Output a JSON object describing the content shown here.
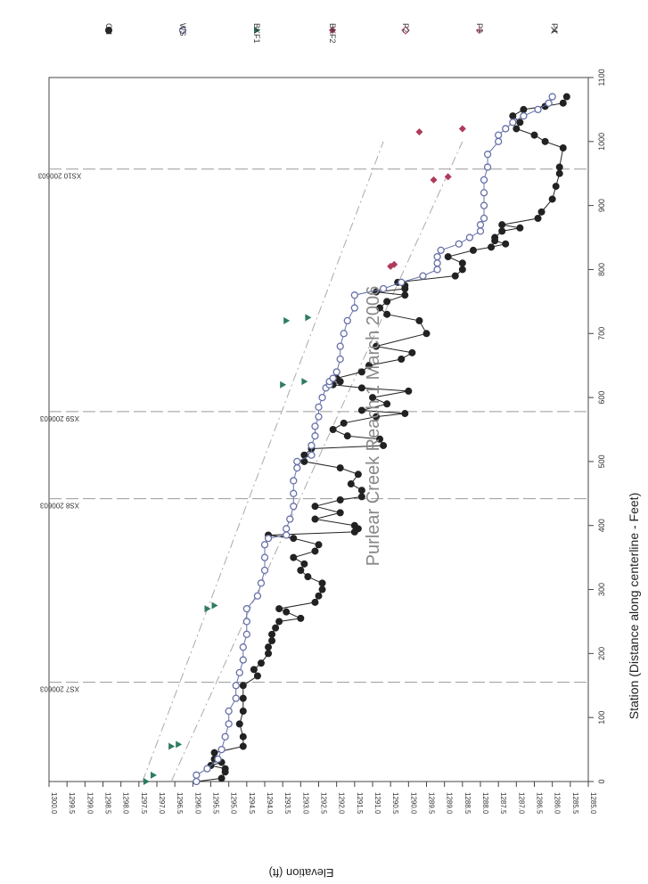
{
  "chart_data": {
    "type": "scatter",
    "title": "Purlear Creek Reach 1 March 2006",
    "xlabel": "Station (Distance along centerline - Feet)",
    "ylabel": "Elevation (ft)",
    "rotation_note": "figure rotated 90 degrees clockwise",
    "xlim": [
      0,
      1100
    ],
    "ylim": [
      1285.0,
      1300.0
    ],
    "x_ticks": [
      "0",
      "100",
      "200",
      "300",
      "400",
      "500",
      "600",
      "700",
      "800",
      "900",
      "1000",
      "1100"
    ],
    "y_ticks": [
      "1285.0",
      "1285.5",
      "1286.0",
      "1286.5",
      "1287.0",
      "1287.5",
      "1288.0",
      "1288.5",
      "1289.0",
      "1289.5",
      "1290.0",
      "1290.5",
      "1291.0",
      "1291.5",
      "1292.0",
      "1292.5",
      "1293.0",
      "1293.5",
      "1294.0",
      "1294.5",
      "1295.0",
      "1295.5",
      "1296.0",
      "1296.5",
      "1297.0",
      "1297.5",
      "1298.0",
      "1298.5",
      "1299.0",
      "1299.5",
      "1300.0"
    ],
    "legend_position": "right (above plot after rotation)",
    "colors": {
      "CH": "#222222",
      "WS": "#6670a8",
      "BKF1": "#2e7d5e",
      "BKF2": "#b03a5a",
      "P2": "#b03a5a",
      "P3": "#b03a5a",
      "P4": "#555555",
      "ref": "#999999",
      "trend": "#aaaaaa"
    },
    "cross_sections": [
      {
        "label": "XS7 200603",
        "x": 155
      },
      {
        "label": "XS8 200603",
        "x": 442
      },
      {
        "label": "XS9 200603",
        "x": 578
      },
      {
        "label": "XS10 200603",
        "x": 957
      }
    ],
    "trend_lines": [
      {
        "from": [
          0,
          1297.4
        ],
        "to": [
          1000,
          1290.7
        ]
      },
      {
        "from": [
          0,
          1296.6
        ],
        "to": [
          1000,
          1288.5
        ]
      }
    ],
    "series": [
      {
        "name": "CH",
        "marker": "filled-circle",
        "connected": true,
        "x": [
          0,
          5,
          15,
          20,
          25,
          30,
          35,
          45,
          55,
          70,
          90,
          110,
          130,
          150,
          165,
          175,
          185,
          200,
          210,
          220,
          230,
          240,
          250,
          255,
          265,
          270,
          280,
          290,
          300,
          310,
          320,
          330,
          340,
          350,
          360,
          370,
          380,
          385,
          390,
          395,
          400,
          410,
          420,
          430,
          440,
          445,
          455,
          465,
          480,
          490,
          500,
          510,
          520,
          525,
          535,
          540,
          550,
          560,
          570,
          575,
          580,
          590,
          600,
          610,
          615,
          620,
          625,
          630,
          640,
          650,
          660,
          670,
          680,
          700,
          720,
          730,
          740,
          750,
          760,
          765,
          770,
          775,
          780,
          790,
          800,
          810,
          820,
          830,
          835,
          840,
          845,
          850,
          860,
          865,
          870,
          880,
          890,
          910,
          930,
          950,
          960,
          990,
          1000,
          1010,
          1020,
          1030,
          1040,
          1050,
          1055,
          1060,
          1070
        ],
        "y": [
          1295.9,
          1295.2,
          1295.1,
          1295.1,
          1295.5,
          1295.2,
          1295.4,
          1295.4,
          1294.6,
          1294.6,
          1294.7,
          1294.6,
          1294.6,
          1294.6,
          1294.2,
          1294.3,
          1294.1,
          1293.9,
          1293.9,
          1293.8,
          1293.8,
          1293.7,
          1293.6,
          1293.0,
          1293.4,
          1293.6,
          1292.6,
          1292.5,
          1292.4,
          1292.4,
          1292.8,
          1293.0,
          1292.9,
          1293.2,
          1292.6,
          1292.5,
          1293.2,
          1293.9,
          1291.5,
          1291.4,
          1291.5,
          1292.6,
          1291.9,
          1292.6,
          1291.9,
          1291.3,
          1291.3,
          1291.6,
          1291.4,
          1291.9,
          1292.9,
          1292.9,
          1292.7,
          1290.7,
          1290.8,
          1291.7,
          1292.1,
          1291.8,
          1290.9,
          1290.1,
          1291.3,
          1290.6,
          1291.0,
          1290.0,
          1291.3,
          1292.1,
          1291.9,
          1292.0,
          1291.3,
          1291.1,
          1290.2,
          1289.9,
          1290.9,
          1289.5,
          1289.7,
          1290.6,
          1290.8,
          1290.6,
          1290.1,
          1290.9,
          1290.1,
          1290.1,
          1290.3,
          1288.7,
          1288.5,
          1288.5,
          1288.9,
          1288.2,
          1287.7,
          1287.3,
          1287.6,
          1287.6,
          1287.4,
          1286.9,
          1287.4,
          1286.4,
          1286.3,
          1286.0,
          1285.9,
          1285.8,
          1285.8,
          1285.7,
          1286.2,
          1286.5,
          1287.0,
          1286.9,
          1287.1,
          1286.8,
          1286.2,
          1285.7,
          1285.6
        ]
      },
      {
        "name": "WS",
        "marker": "open-circle",
        "connected": true,
        "x": [
          0,
          10,
          20,
          35,
          50,
          70,
          90,
          110,
          130,
          150,
          170,
          190,
          210,
          230,
          250,
          270,
          290,
          310,
          330,
          350,
          370,
          380,
          385,
          395,
          410,
          430,
          450,
          470,
          490,
          500,
          510,
          525,
          540,
          555,
          570,
          585,
          600,
          615,
          620,
          625,
          630,
          640,
          660,
          680,
          700,
          720,
          740,
          760,
          770,
          780,
          790,
          800,
          810,
          820,
          830,
          840,
          850,
          860,
          870,
          880,
          900,
          920,
          940,
          960,
          980,
          1000,
          1010,
          1020,
          1030,
          1040,
          1050,
          1060,
          1070
        ],
        "y": [
          1295.9,
          1295.9,
          1295.6,
          1295.3,
          1295.2,
          1295.1,
          1295.0,
          1295.0,
          1294.8,
          1294.8,
          1294.7,
          1294.6,
          1294.6,
          1294.5,
          1294.5,
          1294.5,
          1294.2,
          1294.1,
          1294.0,
          1294.0,
          1294.0,
          1293.9,
          1293.4,
          1293.4,
          1293.3,
          1293.2,
          1293.2,
          1293.2,
          1293.1,
          1293.1,
          1292.7,
          1292.7,
          1292.6,
          1292.6,
          1292.5,
          1292.5,
          1292.4,
          1292.3,
          1292.2,
          1292.2,
          1292.1,
          1292.0,
          1291.9,
          1291.9,
          1291.8,
          1291.7,
          1291.5,
          1291.5,
          1290.7,
          1290.2,
          1289.6,
          1289.2,
          1289.2,
          1289.2,
          1289.1,
          1288.6,
          1288.3,
          1288.0,
          1288.0,
          1287.9,
          1287.9,
          1287.9,
          1287.9,
          1287.8,
          1287.8,
          1287.5,
          1287.5,
          1287.3,
          1287.1,
          1286.8,
          1286.4,
          1286.1,
          1286.0
        ]
      },
      {
        "name": "BKF1",
        "marker": "triangle",
        "x": [
          0,
          10,
          55,
          58,
          270,
          275,
          620,
          625,
          720,
          725
        ],
        "y": [
          1297.3,
          1297.1,
          1296.6,
          1296.4,
          1295.6,
          1295.4,
          1293.5,
          1292.9,
          1293.4,
          1292.8
        ]
      },
      {
        "name": "BKF2",
        "marker": "diamond",
        "x": [
          805,
          808,
          940,
          945,
          1015,
          1020
        ],
        "y": [
          1290.5,
          1290.4,
          1289.3,
          1288.9,
          1289.7,
          1288.5
        ]
      },
      {
        "name": "P2",
        "marker": "open-diamond",
        "x": [],
        "y": []
      },
      {
        "name": "P3",
        "marker": "plus",
        "x": [],
        "y": []
      },
      {
        "name": "P4",
        "marker": "cross",
        "x": [],
        "y": []
      }
    ]
  }
}
